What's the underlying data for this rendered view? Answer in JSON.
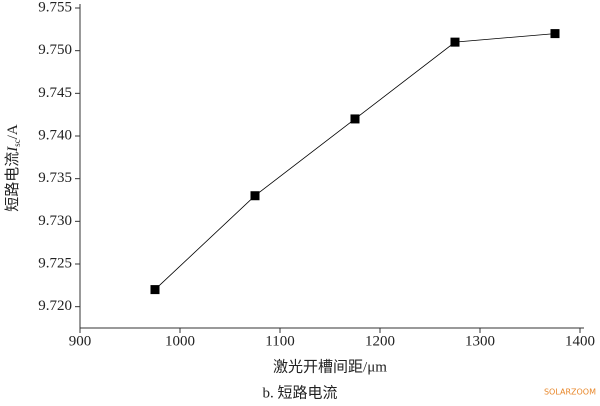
{
  "chart_data": {
    "type": "line",
    "xlabel": "激光开槽间距/μm",
    "ylabel": {
      "main": "短路电流",
      "symbol": "I",
      "sub": "sc",
      "unit": "/A"
    },
    "caption": "b. 短路电流",
    "watermark": "SOLARZOOM",
    "x": [
      975,
      1075,
      1175,
      1275,
      1375
    ],
    "series": [
      {
        "color": "#000000",
        "values": [
          9.722,
          9.733,
          9.742,
          9.751,
          9.752
        ]
      }
    ],
    "xlim": [
      900,
      1400
    ],
    "xticks": [
      900,
      1000,
      1100,
      1200,
      1300,
      1400
    ],
    "ylim": [
      9.7175,
      9.755
    ],
    "yticks": [
      {
        "value": 9.72,
        "label": "9.720"
      },
      9.725,
      {
        "value": 9.73,
        "label": "9.730"
      },
      9.735,
      {
        "value": 9.74,
        "label": "9.740"
      },
      9.745,
      {
        "value": 9.75,
        "label": "9.750"
      },
      9.755
    ],
    "grid": false
  }
}
